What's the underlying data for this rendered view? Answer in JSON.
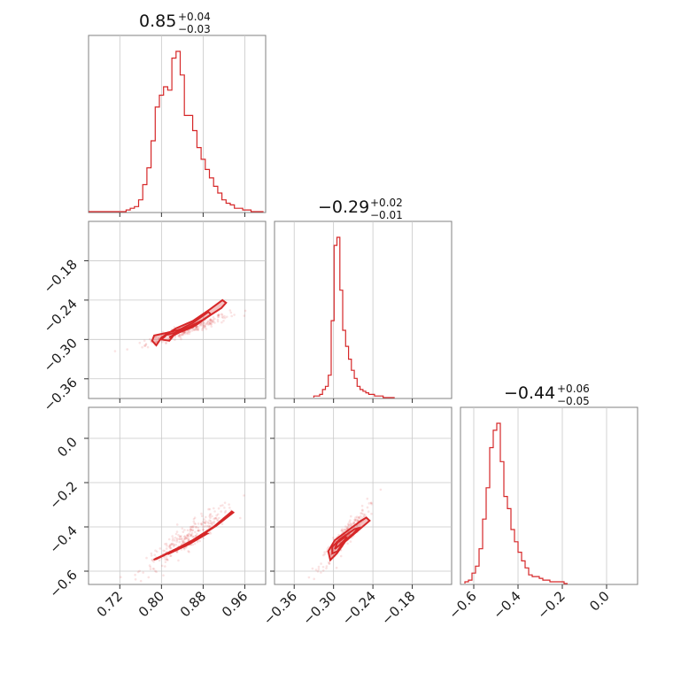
{
  "chart_data": {
    "type": "corner",
    "color": "#d62728",
    "titles": [
      {
        "main": "0.85",
        "plus": "+0.04",
        "minus": "−0.03"
      },
      {
        "main": "−0.29",
        "plus": "+0.02",
        "minus": "−0.01"
      },
      {
        "main": "−0.44",
        "plus": "+0.06",
        "minus": "−0.05"
      }
    ],
    "params": [
      {
        "range": [
          0.66,
          1.0
        ],
        "ticks": [
          0.72,
          0.8,
          0.88,
          0.96
        ],
        "tick_labels": [
          "0.72",
          "0.80",
          "0.88",
          "0.96"
        ]
      },
      {
        "range": [
          -0.39,
          -0.12
        ],
        "ticks": [
          -0.36,
          -0.3,
          -0.24,
          -0.18
        ],
        "tick_labels": [
          "−0.36",
          "−0.30",
          "−0.24",
          "−0.18"
        ]
      },
      {
        "range": [
          -0.66,
          0.14
        ],
        "ticks": [
          -0.6,
          -0.4,
          -0.2,
          0.0
        ],
        "tick_labels": [
          "−0.6",
          "−0.4",
          "−0.2",
          "0.0"
        ]
      }
    ],
    "grid": true,
    "histograms": [
      {
        "param": 0,
        "bin_edges": [
          0.66,
          0.668,
          0.676,
          0.684,
          0.692,
          0.7,
          0.708,
          0.716,
          0.724,
          0.732,
          0.74,
          0.748,
          0.756,
          0.764,
          0.772,
          0.78,
          0.788,
          0.796,
          0.804,
          0.812,
          0.82,
          0.828,
          0.836,
          0.844,
          0.852,
          0.86,
          0.868,
          0.876,
          0.884,
          0.892,
          0.9,
          0.908,
          0.916,
          0.924,
          0.932,
          0.94,
          0.948,
          0.956,
          0.964,
          0.972,
          0.98,
          0.988,
          0.996
        ],
        "counts": [
          0,
          0,
          0,
          0,
          0,
          0,
          0,
          0,
          0,
          0.01,
          0.02,
          0.03,
          0.07,
          0.16,
          0.26,
          0.42,
          0.62,
          0.69,
          0.74,
          0.72,
          0.91,
          0.95,
          0.81,
          0.57,
          0.57,
          0.48,
          0.38,
          0.31,
          0.25,
          0.2,
          0.15,
          0.11,
          0.07,
          0.05,
          0.04,
          0.02,
          0.02,
          0.01,
          0.01,
          0,
          0,
          0
        ]
      },
      {
        "param": 1,
        "bin_edges": [
          -0.33,
          -0.3256,
          -0.3212,
          -0.3168,
          -0.3124,
          -0.308,
          -0.3036,
          -0.2992,
          -0.2948,
          -0.2904,
          -0.286,
          -0.2816,
          -0.2772,
          -0.2728,
          -0.2684,
          -0.264,
          -0.2596,
          -0.2552,
          -0.2508,
          -0.2464,
          -0.242,
          -0.2376,
          -0.2332,
          -0.2288,
          -0.2244,
          -0.22,
          -0.2156,
          -0.2112,
          -0.2068
        ],
        "counts": [
          0.01,
          0.01,
          0.02,
          0.05,
          0.07,
          0.14,
          0.48,
          0.95,
          1.0,
          0.67,
          0.42,
          0.32,
          0.24,
          0.17,
          0.12,
          0.07,
          0.05,
          0.04,
          0.03,
          0.02,
          0.02,
          0.01,
          0.01,
          0.01,
          0,
          0,
          0,
          0
        ]
      },
      {
        "param": 2,
        "bin_edges": [
          -0.64,
          -0.624,
          -0.608,
          -0.592,
          -0.576,
          -0.56,
          -0.544,
          -0.528,
          -0.512,
          -0.496,
          -0.48,
          -0.464,
          -0.448,
          -0.432,
          -0.416,
          -0.4,
          -0.384,
          -0.368,
          -0.352,
          -0.336,
          -0.32,
          -0.304,
          -0.288,
          -0.272,
          -0.256,
          -0.24,
          -0.224,
          -0.208,
          -0.192,
          -0.176
        ],
        "counts": [
          0.01,
          0.02,
          0.06,
          0.1,
          0.2,
          0.37,
          0.55,
          0.78,
          0.88,
          0.92,
          0.7,
          0.5,
          0.43,
          0.31,
          0.24,
          0.18,
          0.13,
          0.09,
          0.05,
          0.04,
          0.04,
          0.03,
          0.02,
          0.02,
          0.01,
          0.01,
          0.01,
          0.01,
          0,
          0
        ]
      }
    ],
    "pairs": [
      {
        "x_param": 0,
        "y_param": 1,
        "contours": [
          [
            [
              0.782,
              -0.302
            ],
            [
              0.786,
              -0.294
            ],
            [
              0.81,
              -0.29
            ],
            [
              0.85,
              -0.282
            ],
            [
              0.88,
              -0.27
            ],
            [
              0.915,
              -0.252
            ],
            [
              0.924,
              -0.244
            ],
            [
              0.917,
              -0.24
            ],
            [
              0.893,
              -0.254
            ],
            [
              0.86,
              -0.272
            ],
            [
              0.828,
              -0.283
            ],
            [
              0.8,
              -0.297
            ],
            [
              0.79,
              -0.309
            ],
            [
              0.782,
              -0.302
            ]
          ],
          [
            [
              0.8,
              -0.3
            ],
            [
              0.81,
              -0.293
            ],
            [
              0.84,
              -0.287
            ],
            [
              0.87,
              -0.276
            ],
            [
              0.895,
              -0.262
            ],
            [
              0.89,
              -0.258
            ],
            [
              0.86,
              -0.275
            ],
            [
              0.83,
              -0.287
            ],
            [
              0.815,
              -0.302
            ],
            [
              0.8,
              -0.3
            ]
          ],
          [
            [
              0.815,
              -0.297
            ],
            [
              0.835,
              -0.289
            ],
            [
              0.86,
              -0.281
            ],
            [
              0.87,
              -0.276
            ],
            [
              0.85,
              -0.282
            ],
            [
              0.825,
              -0.292
            ],
            [
              0.815,
              -0.297
            ]
          ]
        ],
        "scatter_center": [
          0.85,
          -0.285
        ],
        "scatter_spread": [
          0.04,
          0.012
        ]
      },
      {
        "x_param": 0,
        "y_param": 2,
        "contours": [
          [
            [
              0.785,
              -0.548
            ],
            [
              0.82,
              -0.51
            ],
            [
              0.86,
              -0.46
            ],
            [
              0.9,
              -0.4
            ],
            [
              0.935,
              -0.33
            ],
            [
              0.938,
              -0.335
            ],
            [
              0.905,
              -0.395
            ],
            [
              0.865,
              -0.455
            ],
            [
              0.825,
              -0.505
            ],
            [
              0.79,
              -0.545
            ],
            [
              0.785,
              -0.548
            ]
          ],
          [
            [
              0.81,
              -0.52
            ],
            [
              0.85,
              -0.475
            ],
            [
              0.885,
              -0.428
            ],
            [
              0.888,
              -0.43
            ],
            [
              0.853,
              -0.478
            ],
            [
              0.813,
              -0.522
            ],
            [
              0.81,
              -0.52
            ]
          ]
        ],
        "scatter_center": [
          0.85,
          -0.45
        ],
        "scatter_spread": [
          0.045,
          0.08
        ]
      },
      {
        "x_param": 1,
        "y_param": 2,
        "contours": [
          [
            [
              -0.305,
              -0.55
            ],
            [
              -0.308,
              -0.51
            ],
            [
              -0.298,
              -0.46
            ],
            [
              -0.28,
              -0.42
            ],
            [
              -0.258,
              -0.372
            ],
            [
              -0.25,
              -0.358
            ],
            [
              -0.245,
              -0.372
            ],
            [
              -0.262,
              -0.415
            ],
            [
              -0.282,
              -0.465
            ],
            [
              -0.295,
              -0.52
            ],
            [
              -0.305,
              -0.55
            ]
          ],
          [
            [
              -0.302,
              -0.52
            ],
            [
              -0.302,
              -0.49
            ],
            [
              -0.29,
              -0.455
            ],
            [
              -0.268,
              -0.41
            ],
            [
              -0.262,
              -0.405
            ],
            [
              -0.27,
              -0.43
            ],
            [
              -0.285,
              -0.47
            ],
            [
              -0.294,
              -0.51
            ],
            [
              -0.302,
              -0.52
            ]
          ],
          [
            [
              -0.298,
              -0.5
            ],
            [
              -0.294,
              -0.47
            ],
            [
              -0.282,
              -0.445
            ],
            [
              -0.28,
              -0.45
            ],
            [
              -0.29,
              -0.48
            ],
            [
              -0.298,
              -0.5
            ]
          ]
        ],
        "scatter_center": [
          -0.285,
          -0.45
        ],
        "scatter_spread": [
          0.018,
          0.07
        ]
      }
    ]
  }
}
